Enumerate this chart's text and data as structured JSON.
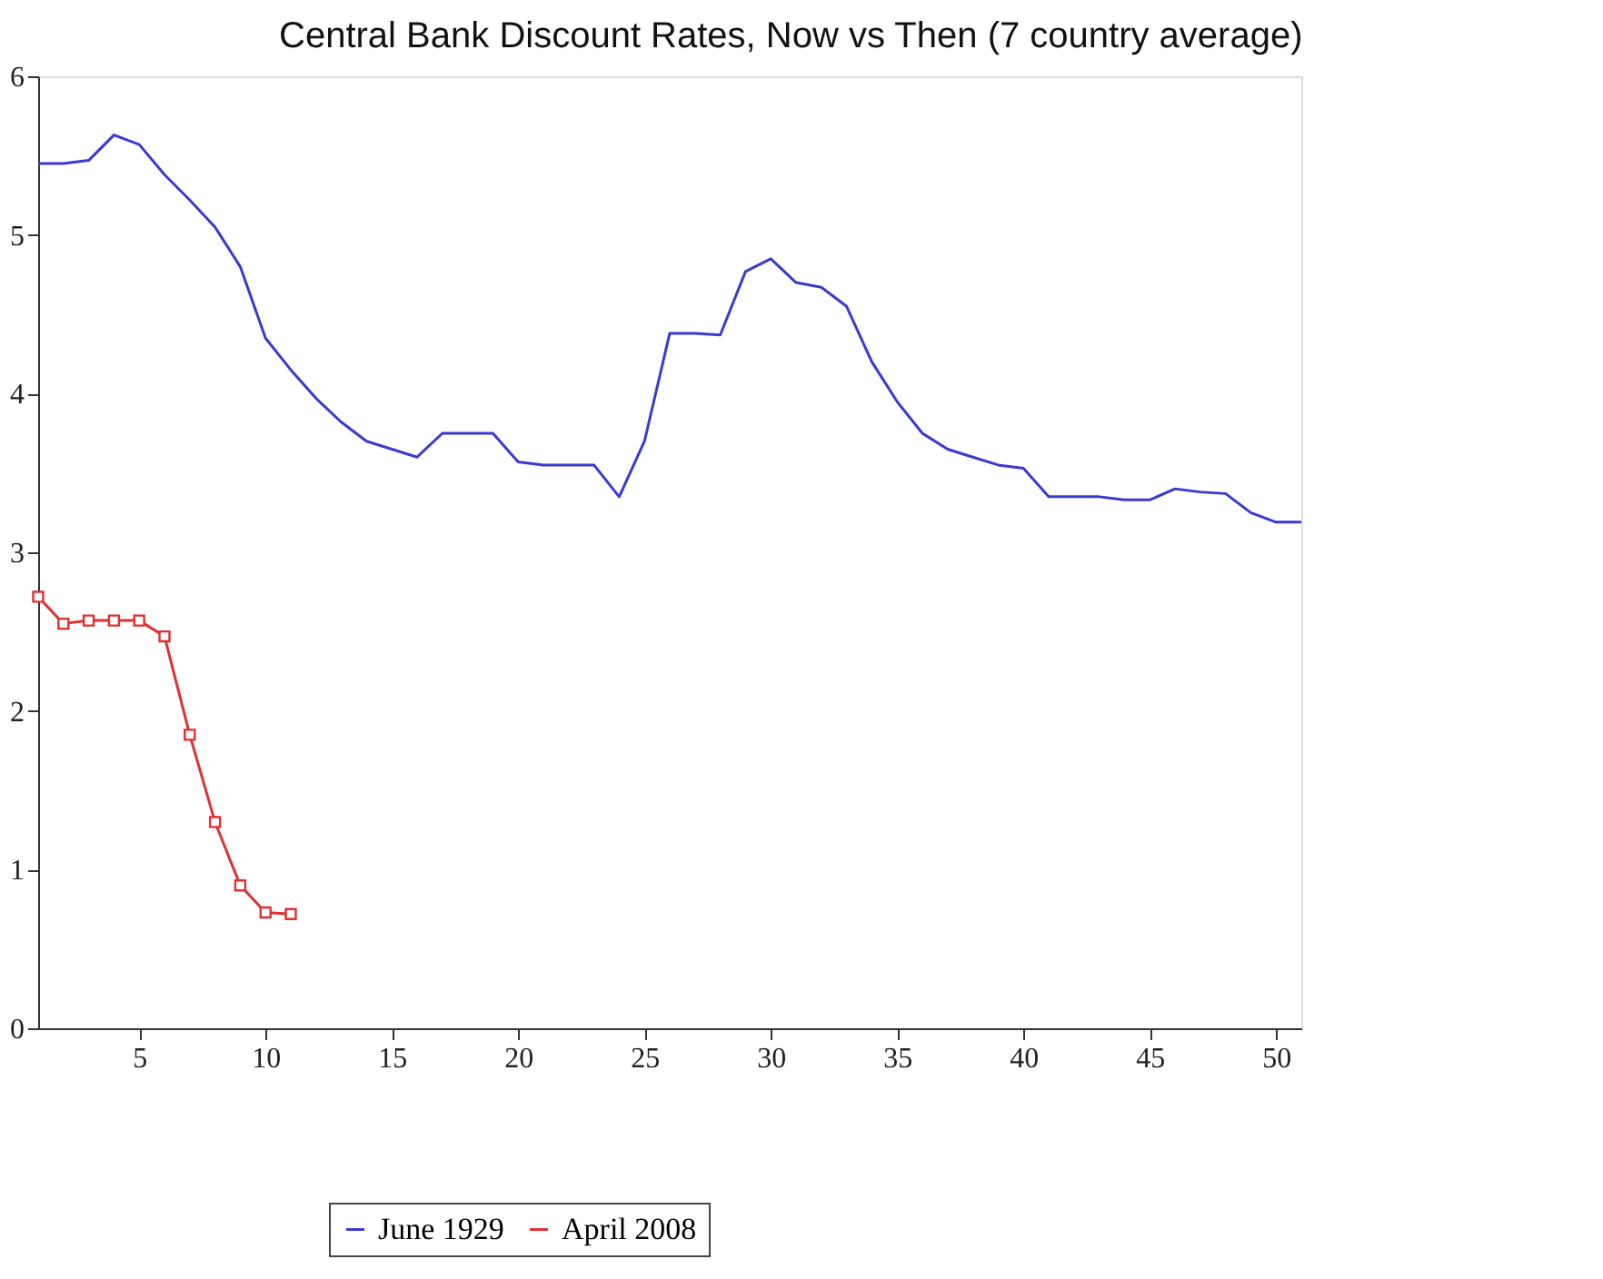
{
  "chart_data": {
    "type": "line",
    "title": "Central Bank Discount Rates, Now vs Then (7 country average)",
    "xlim": [
      1,
      51
    ],
    "xticks": [
      5,
      10,
      15,
      20,
      25,
      30,
      35,
      40,
      45,
      50
    ],
    "ylim": [
      0,
      6
    ],
    "yticks": [
      0,
      1,
      2,
      3,
      4,
      5,
      6
    ],
    "grid": false,
    "legend": "bottom",
    "line_style": "solid",
    "series": [
      {
        "name": "June 1929",
        "color": "#3a3ad0",
        "marker": "none",
        "x": [
          1,
          2,
          3,
          4,
          5,
          6,
          7,
          8,
          9,
          10,
          11,
          12,
          13,
          14,
          15,
          16,
          17,
          18,
          19,
          20,
          21,
          22,
          23,
          24,
          25,
          26,
          27,
          28,
          29,
          30,
          31,
          32,
          33,
          34,
          35,
          36,
          37,
          38,
          39,
          40,
          41,
          42,
          43,
          44,
          45,
          46,
          47,
          48,
          49,
          50,
          51
        ],
        "values": [
          5.45,
          5.45,
          5.47,
          5.63,
          5.57,
          5.38,
          5.22,
          5.05,
          4.8,
          4.35,
          4.15,
          3.97,
          3.82,
          3.7,
          3.65,
          3.6,
          3.75,
          3.75,
          3.75,
          3.57,
          3.55,
          3.55,
          3.55,
          3.35,
          3.7,
          4.38,
          4.38,
          4.37,
          4.77,
          4.85,
          4.7,
          4.67,
          4.55,
          4.2,
          3.95,
          3.75,
          3.65,
          3.6,
          3.55,
          3.53,
          3.35,
          3.35,
          3.35,
          3.33,
          3.33,
          3.4,
          3.38,
          3.37,
          3.25,
          3.19,
          3.19
        ]
      },
      {
        "name": "April 2008",
        "color": "#e03030",
        "marker": "square",
        "x": [
          1,
          2,
          3,
          4,
          5,
          6,
          7,
          8,
          9,
          10,
          11
        ],
        "values": [
          2.72,
          2.55,
          2.57,
          2.57,
          2.57,
          2.47,
          1.85,
          1.3,
          0.9,
          0.73,
          0.72
        ]
      }
    ]
  }
}
